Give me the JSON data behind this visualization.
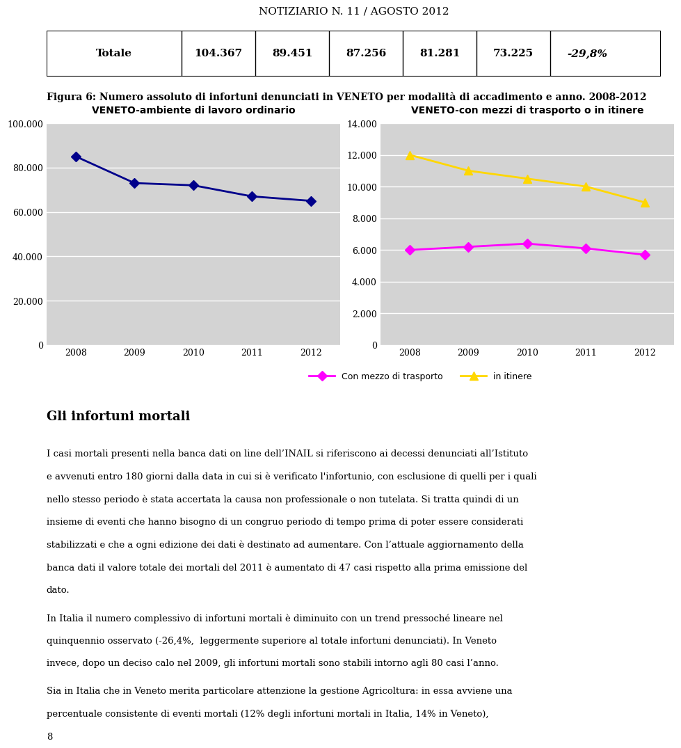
{
  "page_title": "NOTIZIARIO N. 11 / AGOSTO 2012",
  "table": {
    "col0": "Totale",
    "values": [
      "104.367",
      "89.451",
      "87.256",
      "81.281",
      "73.225"
    ],
    "last_col": "-29,8%"
  },
  "figure_caption": "Figura 6: Numero assoluto di infortuni denunciati in VENETO per modalità di accadimento e anno. 2008-2012",
  "left_chart": {
    "title": "VENETO-ambiente di lavoro ordinario",
    "years": [
      2008,
      2009,
      2010,
      2011,
      2012
    ],
    "values": [
      85000,
      73000,
      72000,
      67000,
      65000
    ],
    "color": "#00008B",
    "ylim": [
      0,
      100000
    ],
    "yticks": [
      0,
      20000,
      40000,
      60000,
      80000,
      100000
    ],
    "ytick_labels": [
      "0",
      "20.000",
      "40.000",
      "60.000",
      "80.000",
      "100.000"
    ]
  },
  "right_chart": {
    "title": "VENETO-con mezzi di trasporto o in itinere",
    "years": [
      2008,
      2009,
      2010,
      2011,
      2012
    ],
    "transport_values": [
      6000,
      6200,
      6400,
      6100,
      5700
    ],
    "itinere_values": [
      12000,
      11000,
      10500,
      10000,
      9000
    ],
    "transport_color": "#FF00FF",
    "itinere_color": "#FFD700",
    "ylim": [
      0,
      14000
    ],
    "yticks": [
      0,
      2000,
      4000,
      6000,
      8000,
      10000,
      12000,
      14000
    ],
    "ytick_labels": [
      "0",
      "2.000",
      "4.000",
      "6.000",
      "8.000",
      "10.000",
      "12.000",
      "14.000"
    ],
    "legend_transport": "Con mezzo di trasporto",
    "legend_itinere": "in itinere"
  },
  "body_title": "Gli infortuni mortali",
  "body_text": [
    "I casi mortali presenti nella banca dati on line dell’INAIL si riferiscono ai decessi denunciati all’Istituto",
    "e avvenuti entro 180 giorni dalla data in cui si è verificato l'infortunio, con esclusione di quelli per i quali",
    "nello stesso periodo è stata accertata la causa non professionale o non tutelata. Si tratta quindi di un",
    "insieme di eventi che hanno bisogno di un congruo periodo di tempo prima di poter essere considerati",
    "stabilizzati e che a ogni edizione dei dati è destinato ad aumentare. Con l’attuale aggiornamento della",
    "banca dati il valore totale dei mortali del 2011 è aumentato di 47 casi rispetto alla prima emissione del",
    "dato.",
    "In Italia il numero complessivo di infortuni mortali è diminuito con un trend pressoché lineare nel",
    "quinquennio osservato (-26,4%,  leggermente superiore al totale infortuni denunciati). In Veneto",
    "invece, dopo un deciso calo nel 2009, gli infortuni mortali sono stabili intorno agli 80 casi l’anno.",
    "Sia in Italia che in Veneto merita particolare attenzione la gestione Agricoltura: in essa avviene una",
    "percentuale consistente di eventi mortali (12% degli infortuni mortali in Italia, 14% in Veneto),",
    "8"
  ],
  "background_color": "#ffffff",
  "chart_bg_color": "#d3d3d3",
  "grid_color": "#ffffff"
}
